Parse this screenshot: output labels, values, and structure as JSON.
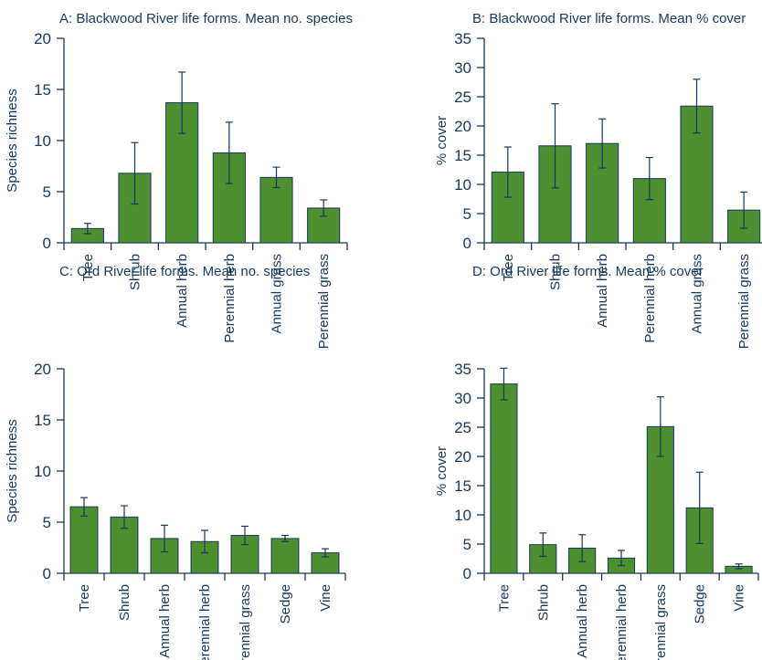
{
  "colors": {
    "bar_fill": "#4e8f2f",
    "bar_stroke": "#17375e",
    "axis": "#17375e",
    "text": "#17375e"
  },
  "chart_data": [
    {
      "type": "bar",
      "title": "A: Blackwood River life forms. Mean no. species",
      "ylabel": "Species richness",
      "xlabel": "",
      "categories": [
        "Tree",
        "Shrub",
        "Annual herb",
        "Perennial herb",
        "Annual grass",
        "Perennial grass"
      ],
      "values": [
        1.4,
        6.8,
        13.7,
        8.8,
        6.4,
        3.4
      ],
      "error": [
        0.5,
        3.0,
        3.0,
        3.0,
        1.0,
        0.8
      ],
      "ylim": [
        0,
        20
      ],
      "yticks": [
        0,
        5,
        10,
        15,
        20
      ],
      "grid": false,
      "legend": "none"
    },
    {
      "type": "bar",
      "title": "B: Blackwood River life forms. Mean % cover",
      "ylabel": "% cover",
      "xlabel": "",
      "categories": [
        "Tree",
        "Shrub",
        "Annual herb",
        "Perennial herb",
        "Annual grass",
        "Perennial grass"
      ],
      "values": [
        12.1,
        16.6,
        17.0,
        11.0,
        23.4,
        5.6
      ],
      "error": [
        4.3,
        7.2,
        4.2,
        3.6,
        4.6,
        3.1
      ],
      "ylim": [
        0,
        35
      ],
      "yticks": [
        0,
        5,
        10,
        15,
        20,
        25,
        30,
        35
      ],
      "grid": false,
      "legend": "none"
    },
    {
      "type": "bar",
      "title": "C: Ord River life forms. Mean no. species",
      "ylabel": "Species richness",
      "xlabel": "",
      "categories": [
        "Tree",
        "Shrub",
        "Annual herb",
        "Perennial herb",
        "Perennial grass",
        "Sedge",
        "Vine"
      ],
      "values": [
        6.5,
        5.5,
        3.4,
        3.1,
        3.7,
        3.4,
        2.0
      ],
      "error": [
        0.9,
        1.1,
        1.3,
        1.1,
        0.9,
        0.3,
        0.4
      ],
      "ylim": [
        0,
        20
      ],
      "yticks": [
        0,
        5,
        10,
        15,
        20
      ],
      "grid": false,
      "legend": "none"
    },
    {
      "type": "bar",
      "title": "D: Ord River life forms. Mean % cover",
      "ylabel": "% cover",
      "xlabel": "",
      "categories": [
        "Tree",
        "Shrub",
        "Annual herb",
        "Perennial herb",
        "Perennial grass",
        "Sedge",
        "Vine"
      ],
      "values": [
        32.4,
        4.9,
        4.3,
        2.6,
        25.1,
        11.2,
        1.2
      ],
      "error": [
        2.7,
        2.0,
        2.3,
        1.3,
        5.1,
        6.1,
        0.4
      ],
      "ylim": [
        0,
        35
      ],
      "yticks": [
        0,
        5,
        10,
        15,
        20,
        25,
        30,
        35
      ],
      "grid": false,
      "legend": "none"
    }
  ]
}
